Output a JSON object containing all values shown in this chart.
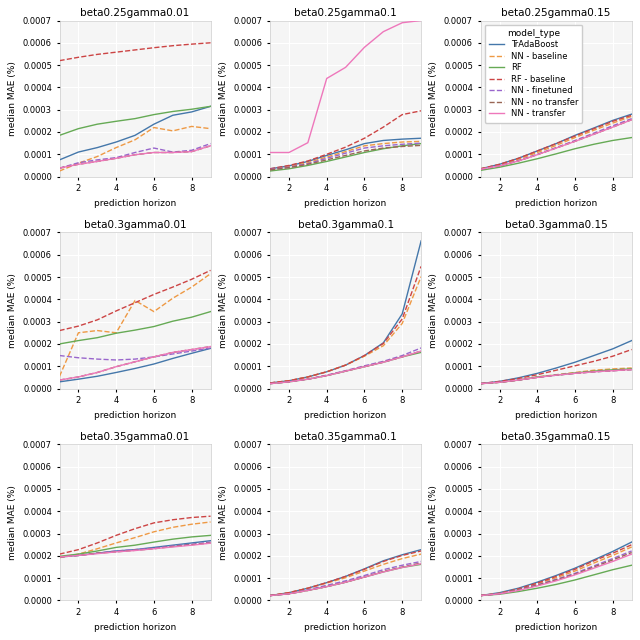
{
  "subplots": [
    {
      "title": "beta0.25gamma0.01"
    },
    {
      "title": "beta0.25gamma0.1"
    },
    {
      "title": "beta0.25gamma0.15"
    },
    {
      "title": "beta0.3gamma0.01"
    },
    {
      "title": "beta0.3gamma0.1"
    },
    {
      "title": "beta0.3gamma0.15"
    },
    {
      "title": "beta0.35gamma0.01"
    },
    {
      "title": "beta0.35gamma0.1"
    },
    {
      "title": "beta0.35gamma0.15"
    }
  ],
  "models": [
    {
      "name": "TrAdaBoost",
      "color": "#4477aa",
      "linestyle": "-",
      "linewidth": 1.0
    },
    {
      "name": "NN - baseline",
      "color": "#ee9944",
      "linestyle": "--",
      "linewidth": 1.0
    },
    {
      "name": "RF",
      "color": "#66aa55",
      "linestyle": "-",
      "linewidth": 1.0
    },
    {
      "name": "RF - baseline",
      "color": "#cc4444",
      "linestyle": "--",
      "linewidth": 1.0
    },
    {
      "name": "NN - finetuned",
      "color": "#9966cc",
      "linestyle": "--",
      "linewidth": 1.0
    },
    {
      "name": "NN - no transfer",
      "color": "#996655",
      "linestyle": "--",
      "linewidth": 1.0
    },
    {
      "name": "NN - transfer",
      "color": "#ee77bb",
      "linestyle": "-",
      "linewidth": 1.0
    }
  ],
  "x": [
    1,
    2,
    3,
    4,
    5,
    6,
    7,
    8,
    9
  ],
  "series": {
    "beta0.25gamma0.01": {
      "TrAdaBoost": [
        7.5e-05,
        0.00011,
        0.00013,
        0.000155,
        0.000185,
        0.000235,
        0.000275,
        0.00029,
        0.000315
      ],
      "NN - baseline": [
        2.5e-05,
        6e-05,
        9e-05,
        0.00013,
        0.000165,
        0.00022,
        0.000205,
        0.000225,
        0.000215
      ],
      "RF": [
        0.000185,
        0.000215,
        0.000235,
        0.000248,
        0.00026,
        0.000278,
        0.000292,
        0.000302,
        0.000315
      ],
      "RF - baseline": [
        0.00052,
        0.000535,
        0.000548,
        0.000558,
        0.000568,
        0.000578,
        0.000587,
        0.000594,
        0.0006
      ],
      "NN - finetuned": [
        3.8e-05,
        6.2e-05,
        7.5e-05,
        8.5e-05,
        0.000108,
        0.000128,
        0.00011,
        0.000118,
        0.000148
      ],
      "NN - no transfer": [
        3.8e-05,
        5.5e-05,
        6.8e-05,
        8.2e-05,
        9.8e-05,
        0.000108,
        0.000108,
        0.000112,
        0.000138
      ],
      "NN - transfer": [
        3.8e-05,
        5.5e-05,
        6.8e-05,
        8.2e-05,
        9.8e-05,
        0.000108,
        0.000108,
        0.000112,
        0.000138
      ]
    },
    "beta0.25gamma0.1": {
      "TrAdaBoost": [
        3.5e-05,
        4.8e-05,
        6.8e-05,
        9.5e-05,
        0.00012,
        0.000148,
        0.000162,
        0.000168,
        0.000172
      ],
      "NN - baseline": [
        3.2e-05,
        4.5e-05,
        6.2e-05,
        8.8e-05,
        0.000112,
        0.000138,
        0.000148,
        0.000155,
        0.000158
      ],
      "RF": [
        2.5e-05,
        3.5e-05,
        5e-05,
        6.8e-05,
        8.8e-05,
        0.000108,
        0.000125,
        0.000138,
        0.000148
      ],
      "RF - baseline": [
        3.5e-05,
        5e-05,
        7e-05,
        0.0001,
        0.000132,
        0.000172,
        0.000222,
        0.000278,
        0.000295
      ],
      "NN - finetuned": [
        3.2e-05,
        4.2e-05,
        5.8e-05,
        8.2e-05,
        0.000105,
        0.000128,
        0.000138,
        0.000145,
        0.00015
      ],
      "NN - no transfer": [
        3e-05,
        4e-05,
        5.5e-05,
        7.5e-05,
        9.5e-05,
        0.000115,
        0.000128,
        0.000135,
        0.00014
      ],
      "NN - transfer": [
        0.000108,
        0.000108,
        0.000152,
        0.00044,
        0.00049,
        0.00058,
        0.00065,
        0.00069,
        0.0007
      ]
    },
    "beta0.25gamma0.15": {
      "TrAdaBoost": [
        3.5e-05,
        5.5e-05,
        8.2e-05,
        0.000115,
        0.000148,
        0.000185,
        0.000218,
        0.000252,
        0.00028
      ],
      "NN - baseline": [
        3.5e-05,
        5.2e-05,
        7.8e-05,
        0.000108,
        0.00014,
        0.000175,
        0.000208,
        0.00024,
        0.00027
      ],
      "RF": [
        2.8e-05,
        4.2e-05,
        6e-05,
        8e-05,
        0.000102,
        0.000125,
        0.000145,
        0.000162,
        0.000175
      ],
      "RF - baseline": [
        3.5e-05,
        5.5e-05,
        8.2e-05,
        0.000115,
        0.000148,
        0.000182,
        0.000215,
        0.000248,
        0.000275
      ],
      "NN - finetuned": [
        3.3e-05,
        4.8e-05,
        7.2e-05,
        0.0001,
        0.00013,
        0.000162,
        0.000195,
        0.000228,
        0.00026
      ],
      "NN - no transfer": [
        3.3e-05,
        4.8e-05,
        7e-05,
        9.8e-05,
        0.000128,
        0.000158,
        0.00019,
        0.000222,
        0.000255
      ],
      "NN - transfer": [
        3.3e-05,
        4.8e-05,
        7e-05,
        9.8e-05,
        0.000128,
        0.000158,
        0.00019,
        0.000222,
        0.000255
      ]
    },
    "beta0.3gamma0.01": {
      "TrAdaBoost": [
        3e-05,
        4.2e-05,
        5.5e-05,
        7.2e-05,
        9e-05,
        0.00011,
        0.000135,
        0.000158,
        0.00018
      ],
      "NN - baseline": [
        5.5e-05,
        0.00025,
        0.00026,
        0.00025,
        0.000395,
        0.000345,
        0.000405,
        0.000455,
        0.000515
      ],
      "RF": [
        0.0002,
        0.000215,
        0.000228,
        0.000248,
        0.000262,
        0.000278,
        0.000302,
        0.00032,
        0.000345
      ],
      "RF - baseline": [
        0.00026,
        0.00028,
        0.000308,
        0.000348,
        0.000385,
        0.000422,
        0.000455,
        0.00049,
        0.00053
      ],
      "NN - finetuned": [
        0.000148,
        0.000138,
        0.000132,
        0.000128,
        0.000132,
        0.000142,
        0.000155,
        0.000168,
        0.000182
      ],
      "NN - no transfer": [
        3.8e-05,
        5.2e-05,
        7.2e-05,
        9.8e-05,
        0.00012,
        0.000142,
        0.000162,
        0.000175,
        0.000188
      ],
      "NN - transfer": [
        3.8e-05,
        5.2e-05,
        7.2e-05,
        9.8e-05,
        0.00012,
        0.000142,
        0.000162,
        0.000175,
        0.000188
      ]
    },
    "beta0.3gamma0.1": {
      "TrAdaBoost": [
        2.5e-05,
        3.5e-05,
        5.2e-05,
        7.5e-05,
        0.000105,
        0.000148,
        0.000205,
        0.000335,
        0.000662
      ],
      "NN - baseline": [
        2.5e-05,
        3.5e-05,
        5.2e-05,
        7.5e-05,
        0.000105,
        0.000145,
        0.000192,
        0.000292,
        0.000502
      ],
      "RF": [
        2.2e-05,
        3e-05,
        4.2e-05,
        5.8e-05,
        7.8e-05,
        9.8e-05,
        0.000118,
        0.000142,
        0.000162
      ],
      "RF - baseline": [
        2.5e-05,
        3.5e-05,
        5.2e-05,
        7.5e-05,
        0.000105,
        0.000148,
        0.000202,
        0.000312,
        0.000548
      ],
      "NN - finetuned": [
        2.2e-05,
        3e-05,
        4.2e-05,
        6e-05,
        8e-05,
        0.000102,
        0.000122,
        0.000148,
        0.000182
      ],
      "NN - no transfer": [
        2.2e-05,
        3e-05,
        4.2e-05,
        5.8e-05,
        7.8e-05,
        9.8e-05,
        0.000118,
        0.000142,
        0.000168
      ],
      "NN - transfer": [
        2.2e-05,
        3e-05,
        4.2e-05,
        5.8e-05,
        7.8e-05,
        9.8e-05,
        0.000118,
        0.000142,
        0.000168
      ]
    },
    "beta0.3gamma0.15": {
      "TrAdaBoost": [
        2.2e-05,
        3.2e-05,
        4.8e-05,
        6.8e-05,
        9.2e-05,
        0.000118,
        0.000148,
        0.000178,
        0.000215
      ],
      "NN - baseline": [
        2.2e-05,
        2.8e-05,
        3.8e-05,
        5.2e-05,
        6.2e-05,
        7.2e-05,
        8.2e-05,
        8.8e-05,
        9.2e-05
      ],
      "RF": [
        2.2e-05,
        2.8e-05,
        3.8e-05,
        5.2e-05,
        6e-05,
        7e-05,
        7.8e-05,
        8.4e-05,
        8.8e-05
      ],
      "RF - baseline": [
        2.2e-05,
        3.2e-05,
        4.5e-05,
        6.2e-05,
        8.2e-05,
        0.000102,
        0.000122,
        0.000145,
        0.000175
      ],
      "NN - finetuned": [
        2.2e-05,
        2.8e-05,
        3.8e-05,
        5e-05,
        6e-05,
        6.8e-05,
        7.5e-05,
        8e-05,
        8.5e-05
      ],
      "NN - no transfer": [
        2.2e-05,
        2.8e-05,
        3.8e-05,
        5e-05,
        6e-05,
        6.8e-05,
        7.5e-05,
        8e-05,
        8.5e-05
      ],
      "NN - transfer": [
        2.2e-05,
        2.8e-05,
        3.8e-05,
        5e-05,
        6e-05,
        6.8e-05,
        7.5e-05,
        8e-05,
        8.5e-05
      ]
    },
    "beta0.35gamma0.01": {
      "TrAdaBoost": [
        0.000195,
        0.000202,
        0.000212,
        0.000222,
        0.000228,
        0.000238,
        0.000248,
        0.000258,
        0.000268
      ],
      "NN - baseline": [
        0.000192,
        0.000208,
        0.000232,
        0.000258,
        0.000282,
        0.000308,
        0.000328,
        0.000342,
        0.000352
      ],
      "RF": [
        0.000198,
        0.000208,
        0.000222,
        0.000238,
        0.000248,
        0.000262,
        0.000275,
        0.000285,
        0.000292
      ],
      "RF - baseline": [
        0.000208,
        0.000228,
        0.000258,
        0.000292,
        0.000322,
        0.000348,
        0.000362,
        0.000372,
        0.000378
      ],
      "NN - finetuned": [
        0.000195,
        0.000202,
        0.000212,
        0.000222,
        0.000228,
        0.000235,
        0.000245,
        0.000252,
        0.000262
      ],
      "NN - no transfer": [
        0.000195,
        0.000202,
        0.000212,
        0.000218,
        0.000225,
        0.000232,
        0.000242,
        0.00025,
        0.000258
      ],
      "NN - transfer": [
        0.000195,
        0.000202,
        0.00021,
        0.000218,
        0.000224,
        0.000232,
        0.00024,
        0.000248,
        0.000257
      ]
    },
    "beta0.35gamma0.1": {
      "TrAdaBoost": [
        2.2e-05,
        3.5e-05,
        5.5e-05,
        8e-05,
        0.000108,
        0.000142,
        0.000178,
        0.000205,
        0.000228
      ],
      "NN - baseline": [
        2.2e-05,
        3.5e-05,
        5.5e-05,
        7.8e-05,
        0.000102,
        0.000132,
        0.000162,
        0.000188,
        0.000208
      ],
      "RF": [
        2.2e-05,
        3e-05,
        4.5e-05,
        6.2e-05,
        8.2e-05,
        0.000105,
        0.000128,
        0.000148,
        0.000162
      ],
      "RF - baseline": [
        2.2e-05,
        3.5e-05,
        5.5e-05,
        8e-05,
        0.000108,
        0.00014,
        0.000175,
        0.000202,
        0.000222
      ],
      "NN - finetuned": [
        2.2e-05,
        3e-05,
        4.8e-05,
        6.8e-05,
        8.8e-05,
        0.000112,
        0.000138,
        0.000158,
        0.000175
      ],
      "NN - no transfer": [
        2.2e-05,
        3e-05,
        4.5e-05,
        6.2e-05,
        8.2e-05,
        0.000105,
        0.00013,
        0.00015,
        0.000168
      ],
      "NN - transfer": [
        2.2e-05,
        3e-05,
        4.5e-05,
        6.2e-05,
        8.2e-05,
        0.000105,
        0.000128,
        0.000148,
        0.000165
      ]
    },
    "beta0.35gamma0.15": {
      "TrAdaBoost": [
        2.2e-05,
        3.5e-05,
        5.5e-05,
        8.2e-05,
        0.000112,
        0.000145,
        0.000182,
        0.00022,
        0.000262
      ],
      "NN - baseline": [
        2.2e-05,
        3.2e-05,
        5e-05,
        7.5e-05,
        0.000102,
        0.000132,
        0.000168,
        0.000202,
        0.00024
      ],
      "RF": [
        2.2e-05,
        2.8e-05,
        4e-05,
        5.5e-05,
        7.2e-05,
        9.2e-05,
        0.000115,
        0.000138,
        0.000158
      ],
      "RF - baseline": [
        2.2e-05,
        3.2e-05,
        5.2e-05,
        7.8e-05,
        0.000108,
        0.00014,
        0.000178,
        0.000212,
        0.00025
      ],
      "NN - finetuned": [
        2.2e-05,
        3e-05,
        4.8e-05,
        7e-05,
        9.5e-05,
        0.000122,
        0.000155,
        0.000188,
        0.000222
      ],
      "NN - no transfer": [
        2.2e-05,
        3e-05,
        4.8e-05,
        6.8e-05,
        9.2e-05,
        0.000118,
        0.00015,
        0.000182,
        0.000215
      ],
      "NN - transfer": [
        2.2e-05,
        3e-05,
        4.5e-05,
        6.5e-05,
        8.8e-05,
        0.000115,
        0.000145,
        0.000175,
        0.000208
      ]
    }
  },
  "legend_title": "model_type",
  "xlabel": "prediction horizon",
  "ylabel": "median MAE (%)",
  "ylim": [
    0,
    0.0007
  ],
  "yticks": [
    0.0,
    0.0001,
    0.0002,
    0.0003,
    0.0004,
    0.0005,
    0.0006,
    0.0007
  ],
  "xticks": [
    2,
    4,
    6,
    8
  ],
  "bg_color": "#f5f5f5",
  "title_fontsize": 7.5,
  "axis_fontsize": 6.5,
  "tick_fontsize": 6,
  "legend_fontsize": 6,
  "legend_title_fontsize": 6.5
}
